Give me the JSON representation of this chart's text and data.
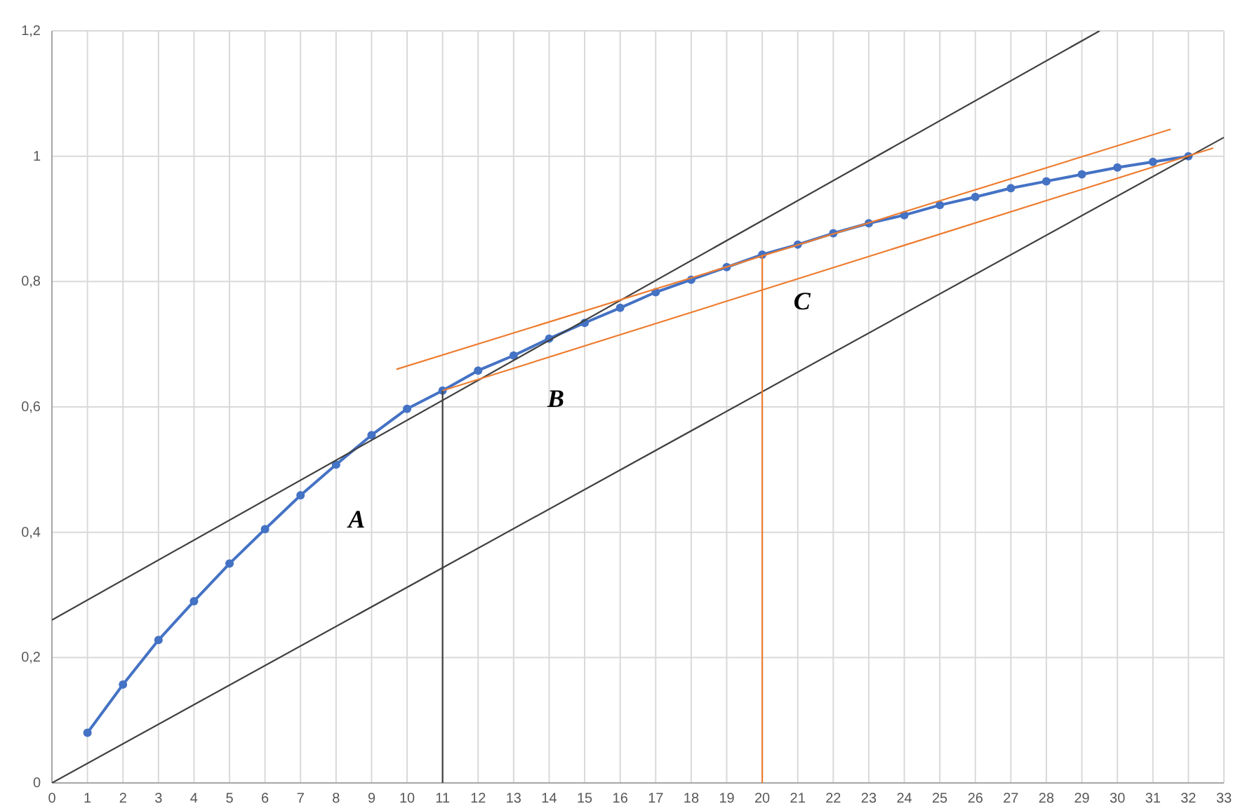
{
  "chart_data": {
    "type": "line",
    "xlim": [
      0,
      33
    ],
    "ylim": [
      0,
      1.2
    ],
    "xticks": [
      0,
      1,
      2,
      3,
      4,
      5,
      6,
      7,
      8,
      9,
      10,
      11,
      12,
      13,
      14,
      15,
      16,
      17,
      18,
      19,
      20,
      21,
      22,
      23,
      24,
      25,
      26,
      27,
      28,
      29,
      30,
      31,
      32,
      33
    ],
    "yticks": [
      0,
      {
        "value": 0.2,
        "label": "0,2"
      },
      {
        "value": 0.4,
        "label": "0,4"
      },
      {
        "value": 0.6,
        "label": "0,6"
      },
      {
        "value": 0.8,
        "label": "0,8"
      },
      1,
      {
        "value": 1.2,
        "label": "1,2"
      }
    ],
    "grid": true,
    "series": [
      {
        "color": "#4472c4",
        "marker": "circle",
        "x": [
          1,
          2,
          3,
          4,
          5,
          6,
          7,
          8,
          9,
          10,
          11,
          12,
          13,
          14,
          15,
          16,
          17,
          18,
          19,
          20,
          21,
          22,
          23,
          24,
          25,
          26,
          27,
          28,
          29,
          30,
          31,
          32
        ],
        "values": [
          0.08,
          0.157,
          0.228,
          0.29,
          0.35,
          0.405,
          0.459,
          0.508,
          0.555,
          0.597,
          0.626,
          0.658,
          0.682,
          0.709,
          0.734,
          0.758,
          0.783,
          0.803,
          0.823,
          0.843,
          0.859,
          0.877,
          0.893,
          0.906,
          0.922,
          0.935,
          0.949,
          0.96,
          0.971,
          0.982,
          0.991,
          1.0
        ]
      },
      {
        "color": "#404040",
        "marker": "none",
        "x": [
          0,
          29.5
        ],
        "values": [
          0.26,
          1.2
        ]
      },
      {
        "color": "#404040",
        "marker": "none",
        "x": [
          0,
          33
        ],
        "values": [
          0,
          1.03
        ]
      },
      {
        "color": "#404040",
        "marker": "none",
        "x": [
          11,
          11
        ],
        "values": [
          0,
          0.626
        ]
      },
      {
        "color": "#ed7d31",
        "marker": "none",
        "x": [
          9.7,
          31.5
        ],
        "values": [
          0.66,
          1.043
        ]
      },
      {
        "color": "#ed7d31",
        "marker": "none",
        "x": [
          11,
          32.7
        ],
        "values": [
          0.626,
          1.013
        ]
      },
      {
        "color": "#ed7d31",
        "marker": "none",
        "x": [
          20,
          20
        ],
        "values": [
          0,
          0.843
        ]
      }
    ],
    "annotations": [
      "A",
      "B",
      "C"
    ]
  }
}
